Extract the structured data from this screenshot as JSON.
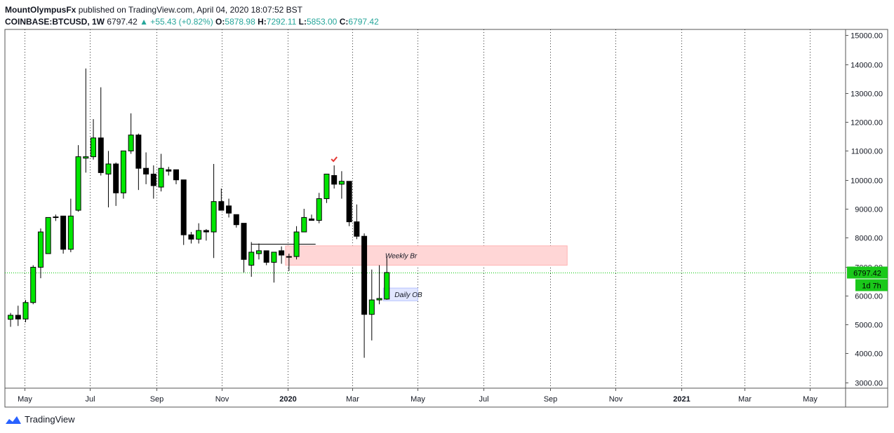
{
  "header": {
    "author": "MountOlympusFx",
    "published": "published on TradingView.com, April 04, 2020 18:07:52 BST",
    "symbol": "COINBASE:BTCUSD, 1W",
    "last": "6797.42",
    "change": "▲ +55.43 (+0.82%)",
    "open_label": "O:",
    "open": "5878.98",
    "high_label": "H:",
    "high": "7292.11",
    "low_label": "L:",
    "low": "5853.00",
    "close_label": "C:",
    "close": "6797.42"
  },
  "footer": {
    "brand": "TradingView"
  },
  "colors": {
    "up": "#00e600",
    "down": "#000000",
    "price_line": "#00c800",
    "weekly_zone": "#ffd6d6",
    "daily_zone": "#e1e6ff"
  },
  "chart_data": {
    "type": "candlestick",
    "ylim": [
      2800,
      15200
    ],
    "yticks": [
      3000,
      4000,
      5000,
      6000,
      7000,
      8000,
      9000,
      10000,
      11000,
      12000,
      13000,
      14000,
      15000
    ],
    "ytick_labels": [
      "3000.00",
      "4000.00",
      "5000.00",
      "6000.00",
      "7000.00",
      "8000.00",
      "9000.00",
      "10000.00",
      "11000.00",
      "12000.00",
      "13000.00",
      "14000.00",
      "15000.00"
    ],
    "xlim": [
      "2019-04-13",
      "2021-06-03"
    ],
    "xticks": [
      {
        "date": "2019-05-01",
        "label": "May"
      },
      {
        "date": "2019-07-01",
        "label": "Jul"
      },
      {
        "date": "2019-09-01",
        "label": "Sep"
      },
      {
        "date": "2019-11-01",
        "label": "Nov"
      },
      {
        "date": "2020-01-01",
        "label": "2020"
      },
      {
        "date": "2020-03-01",
        "label": "Mar"
      },
      {
        "date": "2020-05-01",
        "label": "May"
      },
      {
        "date": "2020-07-01",
        "label": "Jul"
      },
      {
        "date": "2020-09-01",
        "label": "Sep"
      },
      {
        "date": "2020-11-01",
        "label": "Nov"
      },
      {
        "date": "2021-01-01",
        "label": "2021"
      },
      {
        "date": "2021-03-01",
        "label": "Mar"
      },
      {
        "date": "2021-05-01",
        "label": "May"
      }
    ],
    "grid": "vertical dotted",
    "candles": [
      {
        "t": "2019-04-15",
        "o": 5180,
        "h": 5400,
        "l": 4920,
        "c": 5320
      },
      {
        "t": "2019-04-22",
        "o": 5320,
        "h": 5650,
        "l": 4950,
        "c": 5190
      },
      {
        "t": "2019-04-29",
        "o": 5190,
        "h": 5850,
        "l": 5080,
        "c": 5760
      },
      {
        "t": "2019-05-06",
        "o": 5760,
        "h": 7050,
        "l": 5700,
        "c": 6980
      },
      {
        "t": "2019-05-13",
        "o": 6980,
        "h": 8320,
        "l": 6600,
        "c": 8200
      },
      {
        "t": "2019-05-20",
        "o": 7450,
        "h": 8700,
        "l": 7450,
        "c": 8700
      },
      {
        "t": "2019-05-27",
        "o": 8700,
        "h": 8800,
        "l": 8580,
        "c": 8720
      },
      {
        "t": "2019-06-03",
        "o": 8750,
        "h": 8750,
        "l": 7450,
        "c": 7600
      },
      {
        "t": "2019-06-10",
        "o": 7600,
        "h": 9350,
        "l": 7500,
        "c": 8750
      },
      {
        "t": "2019-06-17",
        "o": 8950,
        "h": 11200,
        "l": 8900,
        "c": 10800
      },
      {
        "t": "2019-06-24",
        "o": 10750,
        "h": 13850,
        "l": 10250,
        "c": 10800
      },
      {
        "t": "2019-07-01",
        "o": 10800,
        "h": 12100,
        "l": 10700,
        "c": 11450
      },
      {
        "t": "2019-07-08",
        "o": 11450,
        "h": 13200,
        "l": 10150,
        "c": 10250
      },
      {
        "t": "2019-07-15",
        "o": 10200,
        "h": 11000,
        "l": 9050,
        "c": 10550
      },
      {
        "t": "2019-07-22",
        "o": 10550,
        "h": 10600,
        "l": 9100,
        "c": 9550
      },
      {
        "t": "2019-07-29",
        "o": 9550,
        "h": 11000,
        "l": 9350,
        "c": 11000
      },
      {
        "t": "2019-08-05",
        "o": 11000,
        "h": 12300,
        "l": 10900,
        "c": 11550
      },
      {
        "t": "2019-08-12",
        "o": 11550,
        "h": 11600,
        "l": 9650,
        "c": 10400
      },
      {
        "t": "2019-08-19",
        "o": 10400,
        "h": 10950,
        "l": 9850,
        "c": 10200
      },
      {
        "t": "2019-08-26",
        "o": 10200,
        "h": 10500,
        "l": 9350,
        "c": 9800
      },
      {
        "t": "2019-09-02",
        "o": 9750,
        "h": 10900,
        "l": 9600,
        "c": 10400
      },
      {
        "t": "2019-09-09",
        "o": 10350,
        "h": 10450,
        "l": 10150,
        "c": 10300
      },
      {
        "t": "2019-09-16",
        "o": 10350,
        "h": 10350,
        "l": 9850,
        "c": 10000
      },
      {
        "t": "2019-09-23",
        "o": 10000,
        "h": 10000,
        "l": 7750,
        "c": 8100
      },
      {
        "t": "2019-09-30",
        "o": 8100,
        "h": 8200,
        "l": 7800,
        "c": 7950
      },
      {
        "t": "2019-10-07",
        "o": 7950,
        "h": 8500,
        "l": 7800,
        "c": 8250
      },
      {
        "t": "2019-10-14",
        "o": 8250,
        "h": 8300,
        "l": 7900,
        "c": 8200
      },
      {
        "t": "2019-10-21",
        "o": 8200,
        "h": 10550,
        "l": 7300,
        "c": 9250
      },
      {
        "t": "2019-10-28",
        "o": 9250,
        "h": 9700,
        "l": 8950,
        "c": 8950
      },
      {
        "t": "2019-11-04",
        "o": 9100,
        "h": 9350,
        "l": 8700,
        "c": 8850
      },
      {
        "t": "2019-11-11",
        "o": 8800,
        "h": 8800,
        "l": 8350,
        "c": 8450
      },
      {
        "t": "2019-11-18",
        "o": 8500,
        "h": 8500,
        "l": 6800,
        "c": 7250
      },
      {
        "t": "2019-11-25",
        "o": 7050,
        "h": 7850,
        "l": 6650,
        "c": 7500
      },
      {
        "t": "2019-12-02",
        "o": 7450,
        "h": 7800,
        "l": 7250,
        "c": 7550
      },
      {
        "t": "2019-12-09",
        "o": 7550,
        "h": 7550,
        "l": 7050,
        "c": 7150
      },
      {
        "t": "2019-12-16",
        "o": 7150,
        "h": 7500,
        "l": 6450,
        "c": 7500
      },
      {
        "t": "2019-12-23",
        "o": 7550,
        "h": 7700,
        "l": 7100,
        "c": 7400
      },
      {
        "t": "2019-12-30",
        "o": 7350,
        "h": 7450,
        "l": 6850,
        "c": 7350
      },
      {
        "t": "2020-01-06",
        "o": 7350,
        "h": 8400,
        "l": 7250,
        "c": 8200
      },
      {
        "t": "2020-01-13",
        "o": 8200,
        "h": 9000,
        "l": 8200,
        "c": 8700
      },
      {
        "t": "2020-01-20",
        "o": 8650,
        "h": 8800,
        "l": 8600,
        "c": 8600
      },
      {
        "t": "2020-01-27",
        "o": 8600,
        "h": 9550,
        "l": 8500,
        "c": 9350
      },
      {
        "t": "2020-02-03",
        "o": 9350,
        "h": 10200,
        "l": 9200,
        "c": 10200
      },
      {
        "t": "2020-02-10",
        "o": 10150,
        "h": 10500,
        "l": 9700,
        "c": 9850
      },
      {
        "t": "2020-02-17",
        "o": 9850,
        "h": 10300,
        "l": 9350,
        "c": 9950
      },
      {
        "t": "2020-02-24",
        "o": 9950,
        "h": 9950,
        "l": 8400,
        "c": 8550
      },
      {
        "t": "2020-03-02",
        "o": 8550,
        "h": 9150,
        "l": 7950,
        "c": 8050
      },
      {
        "t": "2020-03-09",
        "o": 8050,
        "h": 8150,
        "l": 3850,
        "c": 5350
      },
      {
        "t": "2020-03-16",
        "o": 5350,
        "h": 6900,
        "l": 4450,
        "c": 5850
      },
      {
        "t": "2020-03-23",
        "o": 5850,
        "h": 7050,
        "l": 5700,
        "c": 5900
      },
      {
        "t": "2020-03-30",
        "o": 5878.98,
        "h": 7292.11,
        "l": 5853,
        "c": 6797.42
      }
    ],
    "zones": [
      {
        "label": "Weekly Br",
        "from": "2019-12-30",
        "to": "2020-09-17",
        "low": 7050,
        "high": 7720
      },
      {
        "label": "Daily OB",
        "from": "2020-03-30",
        "to": "2020-05-01",
        "low": 5820,
        "high": 6260
      }
    ],
    "levels": [
      {
        "from": "2019-11-28",
        "to": "2020-01-27",
        "price": 7780
      }
    ],
    "price_line": 6797.42,
    "price_tag": "6797.42",
    "countdown": "1d 7h"
  }
}
